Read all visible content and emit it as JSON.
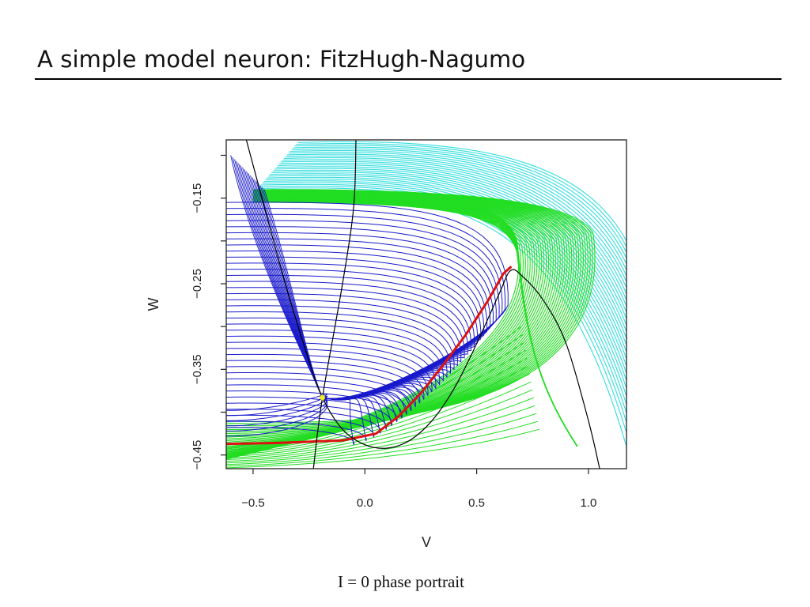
{
  "slide": {
    "title": "A simple model neuron: FitzHugh-Nagumo",
    "caption": "I = 0 phase portrait"
  },
  "chart_data": {
    "type": "line",
    "subtype": "phase-portrait",
    "title": "",
    "xlabel": "V",
    "ylabel": "W",
    "xlim": [
      -0.62,
      1.17
    ],
    "ylim": [
      -0.466,
      -0.082
    ],
    "x_ticks": [
      {
        "value": -0.5,
        "label": "−0.5"
      },
      {
        "value": 0.0,
        "label": "0.0"
      },
      {
        "value": 0.5,
        "label": "0.5"
      },
      {
        "value": 1.0,
        "label": "1.0"
      }
    ],
    "y_ticks": [
      {
        "value": -0.15,
        "label": "−0.15",
        "labeled": true
      },
      {
        "value": -0.2,
        "label": "",
        "labeled": false
      },
      {
        "value": -0.25,
        "label": "−0.25",
        "labeled": true
      },
      {
        "value": -0.3,
        "label": "",
        "labeled": false
      },
      {
        "value": -0.35,
        "label": "−0.35",
        "labeled": true
      },
      {
        "value": -0.4,
        "label": "",
        "labeled": false
      },
      {
        "value": -0.45,
        "label": "−0.45",
        "labeled": true
      },
      {
        "value": -0.1,
        "label": "",
        "labeled": false
      }
    ],
    "grid": false,
    "colors": {
      "blue_family": "#1a1acc",
      "green_family": "#22dd22",
      "cyan_family": "#33dddd",
      "separatrix": "#dd1111",
      "nullcline": "#000000",
      "fixed_point": "#eeee22"
    },
    "fixed_point": {
      "v": -0.19,
      "w": -0.383
    },
    "v_nullcline": [
      [
        -0.53,
        -0.082
      ],
      [
        -0.45,
        -0.16
      ],
      [
        -0.35,
        -0.255
      ],
      [
        -0.25,
        -0.34
      ],
      [
        -0.19,
        -0.383
      ],
      [
        -0.1,
        -0.42
      ],
      [
        0.0,
        -0.438
      ],
      [
        0.1,
        -0.442
      ],
      [
        0.2,
        -0.433
      ],
      [
        0.3,
        -0.41
      ],
      [
        0.4,
        -0.372
      ],
      [
        0.5,
        -0.32
      ],
      [
        0.6,
        -0.262
      ],
      [
        0.65,
        -0.235
      ],
      [
        0.7,
        -0.24
      ],
      [
        0.8,
        -0.27
      ],
      [
        0.9,
        -0.32
      ],
      [
        1.0,
        -0.41
      ],
      [
        1.05,
        -0.466
      ]
    ],
    "w_nullcline": [
      [
        -0.23,
        -0.466
      ],
      [
        -0.19,
        -0.383
      ],
      [
        -0.1,
        -0.25
      ],
      [
        -0.05,
        -0.16
      ],
      [
        -0.04,
        -0.082
      ]
    ],
    "separatrix": [
      [
        -0.62,
        -0.437
      ],
      [
        -0.4,
        -0.436
      ],
      [
        -0.1,
        -0.433
      ],
      [
        0.05,
        -0.425
      ],
      [
        0.15,
        -0.405
      ],
      [
        0.25,
        -0.378
      ],
      [
        0.35,
        -0.345
      ],
      [
        0.45,
        -0.31
      ],
      [
        0.55,
        -0.27
      ],
      [
        0.62,
        -0.238
      ],
      [
        0.655,
        -0.23
      ]
    ],
    "series": [
      {
        "family": "blue",
        "count": 38,
        "path_template": "start at left edge (V≈−0.62) at each W level, run right, turn down along the V-nullcline and converge to the fixed point",
        "w_start_range": [
          -0.43,
          -0.095
        ]
      },
      {
        "family": "green",
        "count": 34,
        "path_template": "flow from upper plateau down the right branch, sweep left under the separatrix, sink toward the lower edge",
        "w_start_range": [
          -0.466,
          -0.15
        ]
      },
      {
        "family": "cyan",
        "count": 30,
        "path_template": "start above the plateau, run right and fall off the right edge (V≈1.17)",
        "w_start_range": [
          -0.14,
          -0.082
        ]
      }
    ]
  }
}
